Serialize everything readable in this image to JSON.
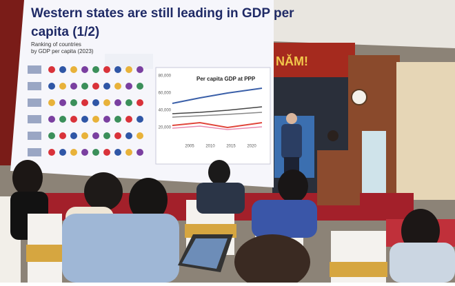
{
  "slide": {
    "title_lines": [
      "Western states are still leading in GDP per",
      "capita (1/2)"
    ],
    "subtitle_lines": [
      "Ranking of countries",
      "by GDP per capita (2023)"
    ],
    "chart_title": "Per capita GDP at PPP",
    "y_tick_labels": [
      "80,000",
      "60,000",
      "40,000",
      "20,000"
    ],
    "x_tick_labels": [
      "2005",
      "2010",
      "2015",
      "2020"
    ]
  },
  "banner": {
    "text": "NĂM!"
  }
}
